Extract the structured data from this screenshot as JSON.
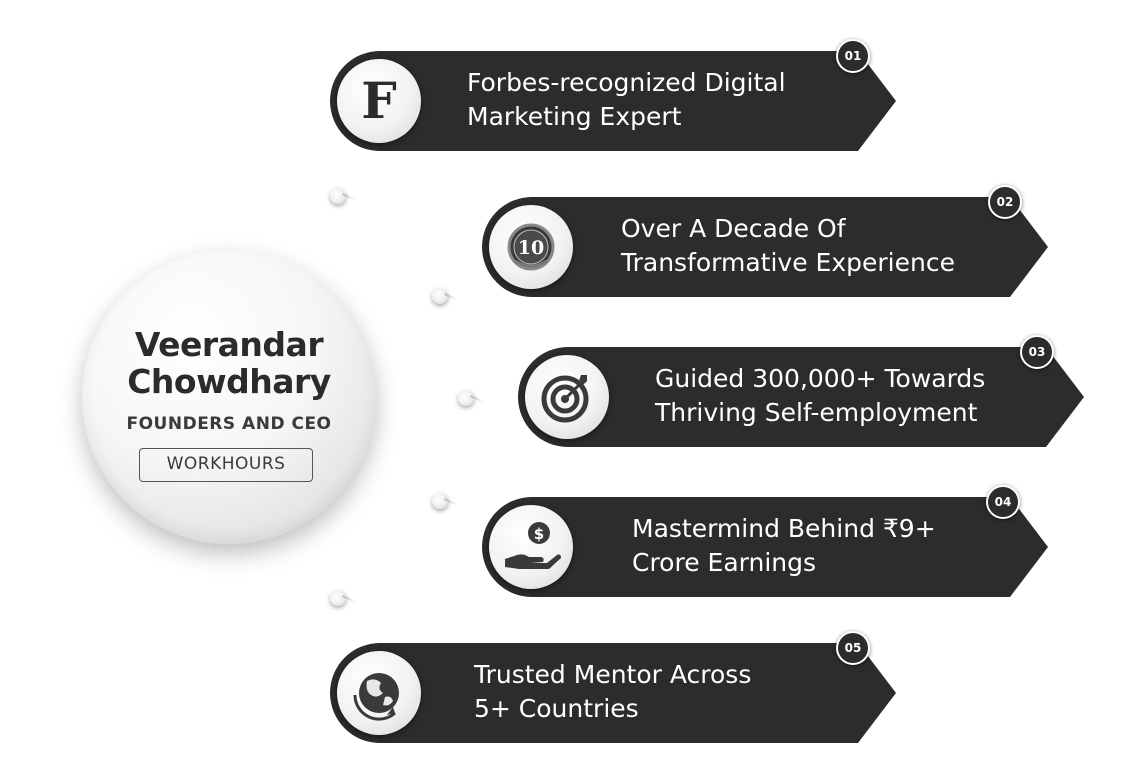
{
  "profile": {
    "name_line1": "Veerandar",
    "name_line2": "Chowdhary",
    "role": "FOUNDERS AND CEO",
    "org": "WORKHOURS"
  },
  "colors": {
    "banner": "#2c2c2c",
    "text_dark": "#2b2b2b",
    "text_light": "#ffffff"
  },
  "items": [
    {
      "number": "01",
      "icon": "forbes-f-icon",
      "icon_text": "F",
      "line1": "Forbes-recognized Digital",
      "line2": "Marketing Expert"
    },
    {
      "number": "02",
      "icon": "ten-years-medal-icon",
      "icon_text": "10",
      "line1": "Over A Decade Of",
      "line2": "Transformative  Experience"
    },
    {
      "number": "03",
      "icon": "target-icon",
      "line1": "Guided 300,000+ Towards",
      "line2": "Thriving Self-employment"
    },
    {
      "number": "04",
      "icon": "money-hand-icon",
      "line1": "Mastermind Behind  ₹9+",
      "line2": "Crore Earnings"
    },
    {
      "number": "05",
      "icon": "globe-icon",
      "line1": "Trusted Mentor Across",
      "line2": "5+ Countries"
    }
  ]
}
